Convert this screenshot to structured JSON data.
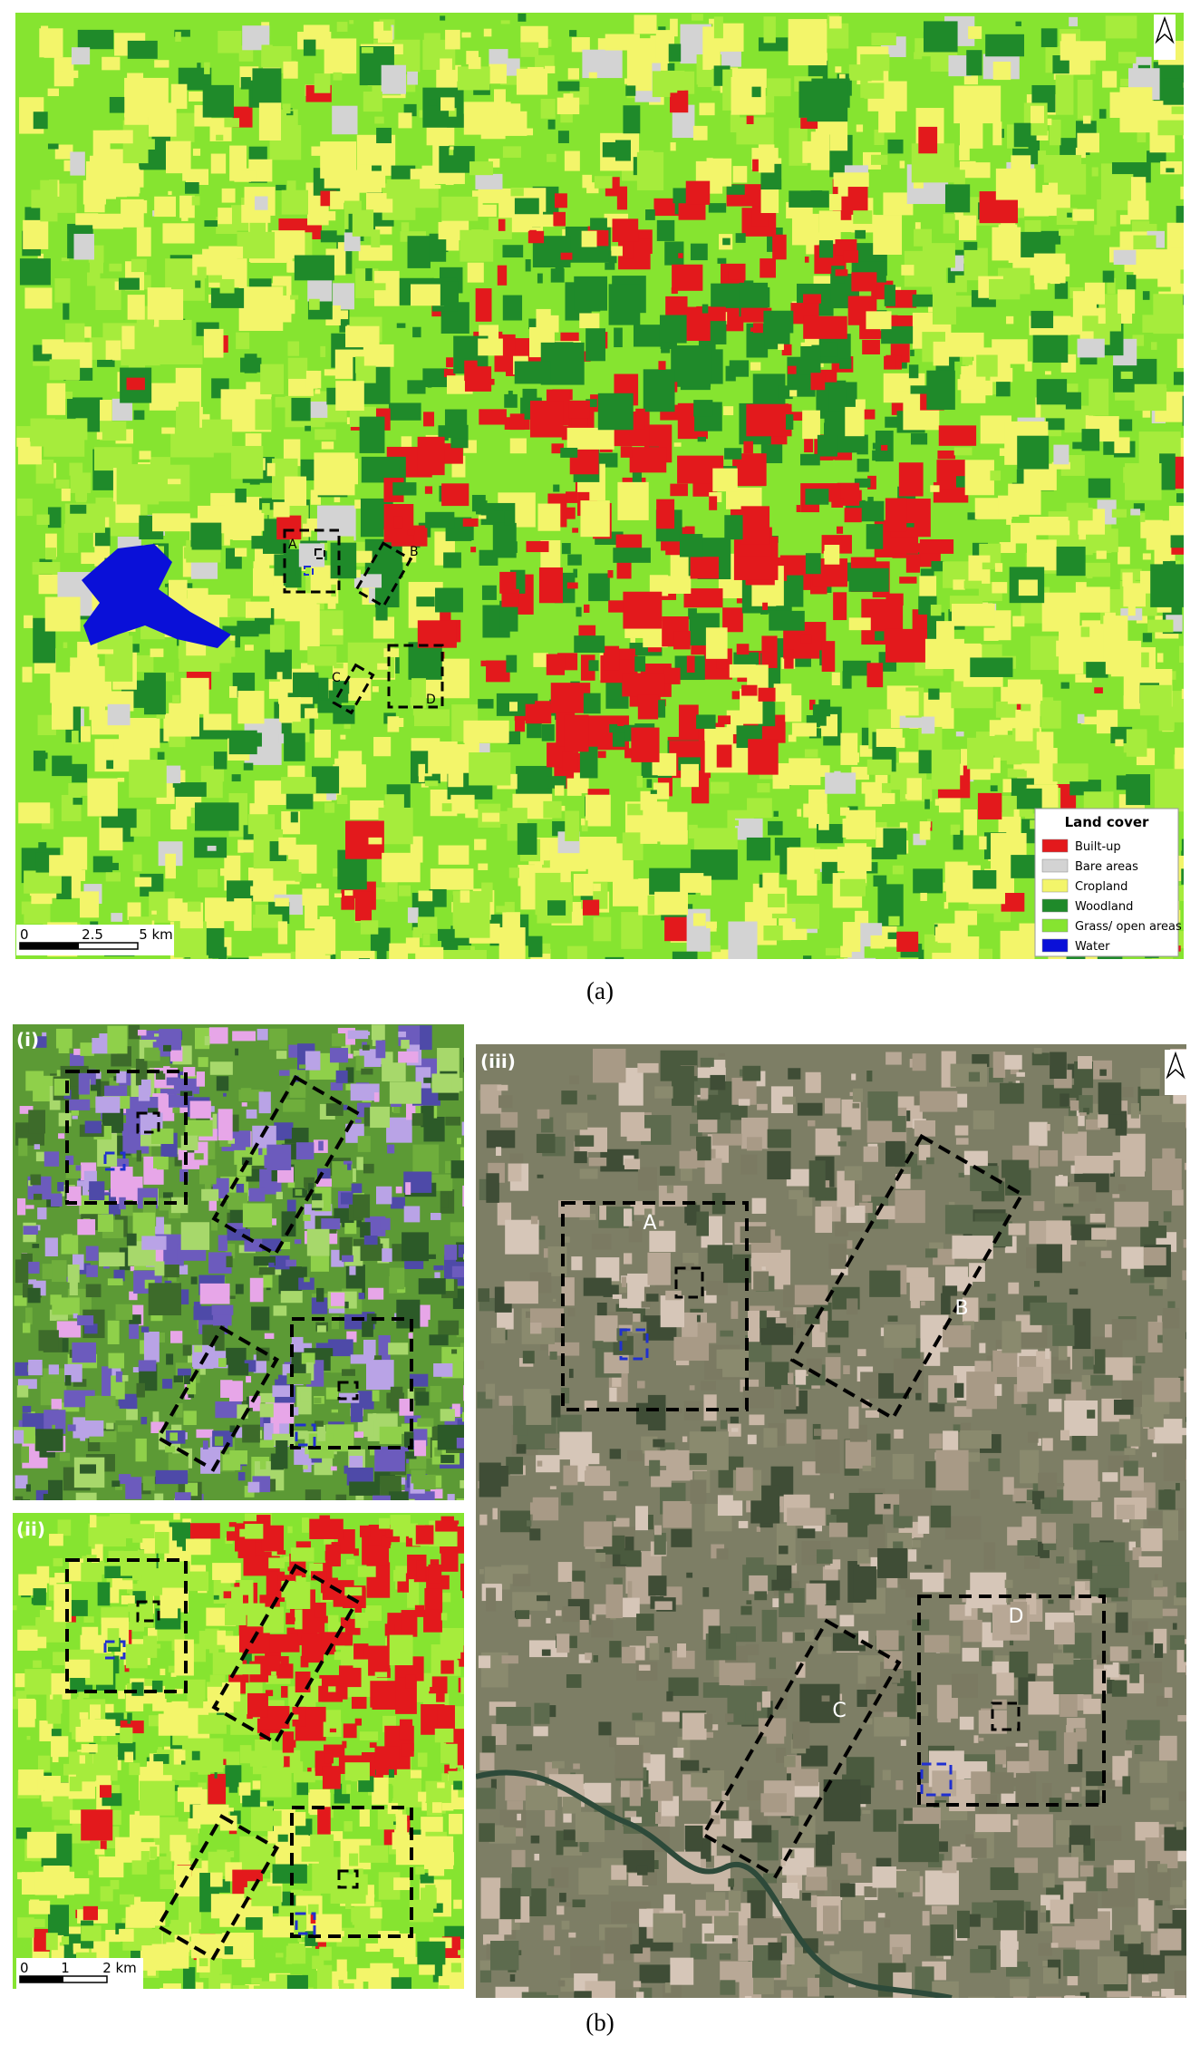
{
  "panel_a": {
    "caption": "(a)",
    "legend": {
      "title": "Land cover",
      "items": [
        {
          "label": "Built-up",
          "color": "#e3191c"
        },
        {
          "label": "Bare areas",
          "color": "#d3d3d3"
        },
        {
          "label": "Cropland",
          "color": "#f3f56a"
        },
        {
          "label": "Woodland",
          "color": "#1f8a2a"
        },
        {
          "label": "Grass/ open areas",
          "color": "#86e430"
        },
        {
          "label": "Water",
          "color": "#0a10d8"
        }
      ]
    },
    "scale_bar": [
      "0",
      "2.5",
      "5 km"
    ],
    "site_labels": [
      "A",
      "B",
      "C",
      "D"
    ]
  },
  "panel_b": {
    "caption": "(b)",
    "insets": [
      "(i)",
      "(ii)",
      "(iii)"
    ],
    "scale_bar": [
      "0",
      "1",
      "2 km"
    ],
    "site_labels": [
      "A",
      "B",
      "C",
      "D"
    ]
  }
}
